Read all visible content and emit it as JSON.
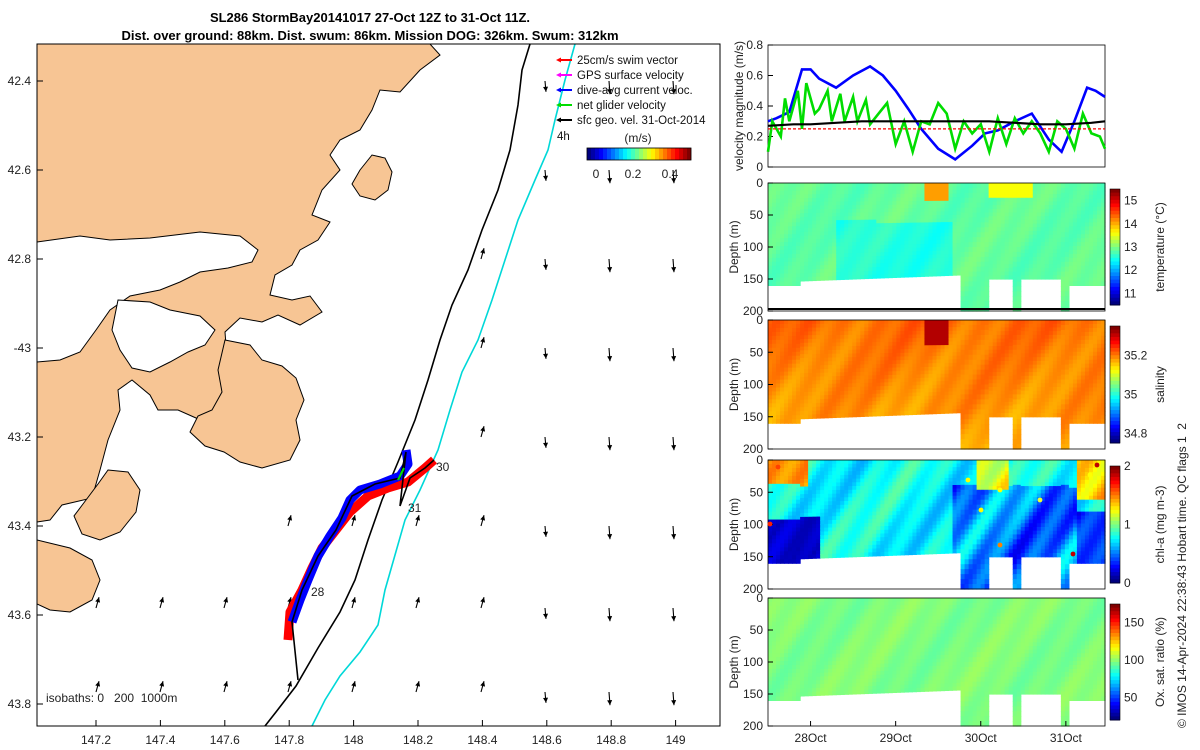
{
  "title": {
    "line1": "SL286 StormBay20141017 27-Oct 12Z to 31-Oct 11Z.",
    "line2": "Dist. over ground: 88km. Dist. swum: 86km. Mission DOG: 326km. Swum: 312km"
  },
  "colors": {
    "land": "#f7c594",
    "swim": "#ff0000",
    "gps": "#ff00ff",
    "dive": "#0000ff",
    "net": "#00dd00",
    "sfc": "#000000",
    "isobath200": "#000000",
    "isobath1000": "#00d8d8"
  },
  "map": {
    "lon_ticks": [
      "147.2",
      "147.4",
      "147.6",
      "147.8",
      "148",
      "148.2",
      "148.4",
      "148.6",
      "148.8",
      "149"
    ],
    "lat_ticks": [
      "42.4",
      "42.6",
      "42.8",
      "-43",
      "43.2",
      "43.4",
      "43.6",
      "43.8"
    ],
    "legend": [
      {
        "key": "swim",
        "label": "25cm/s swim vector"
      },
      {
        "key": "gps",
        "label": "GPS surface velocity"
      },
      {
        "key": "dive",
        "label": "dive-avg current veloc."
      },
      {
        "key": "net",
        "label": "net glider velocity"
      },
      {
        "key": "sfc",
        "label": "sfc geo. vel. 31-Oct-2014"
      }
    ],
    "four_h": "4h",
    "colorbar_title": "(m/s)",
    "colorbar_ticks": [
      "0",
      "0.2",
      "0.4"
    ],
    "day_labels": [
      "28",
      "30",
      "31"
    ],
    "isobaths_label": "isobaths: 0   200  1000m"
  },
  "chart_data": [
    {
      "type": "line",
      "title": "",
      "xlabel": "",
      "ylabel": "velocity magnitude (m/s)",
      "ylim": [
        0,
        0.8
      ],
      "yticks": [
        "0",
        "0.2",
        "0.4",
        "0.6",
        "0.8"
      ],
      "x_day_range": [
        27.5,
        31.46
      ],
      "series": [
        {
          "name": "dive-avg current veloc.",
          "color": "#0000ff",
          "x": [
            27.5,
            27.6,
            27.75,
            27.9,
            28.0,
            28.1,
            28.3,
            28.5,
            28.7,
            28.85,
            29.0,
            29.15,
            29.3,
            29.5,
            29.7,
            29.9,
            30.05,
            30.2,
            30.4,
            30.6,
            30.8,
            30.95,
            31.1,
            31.25,
            31.35,
            31.46
          ],
          "values": [
            0.3,
            0.32,
            0.36,
            0.64,
            0.64,
            0.58,
            0.52,
            0.6,
            0.66,
            0.6,
            0.5,
            0.38,
            0.25,
            0.12,
            0.05,
            0.14,
            0.22,
            0.24,
            0.3,
            0.35,
            0.18,
            0.1,
            0.3,
            0.52,
            0.5,
            0.46
          ]
        },
        {
          "name": "net glider velocity",
          "color": "#00dd00",
          "x": [
            27.5,
            27.55,
            27.65,
            27.7,
            27.75,
            27.85,
            27.9,
            27.95,
            28.05,
            28.1,
            28.2,
            28.25,
            28.35,
            28.4,
            28.5,
            28.55,
            28.65,
            28.7,
            28.8,
            28.9,
            29.0,
            29.1,
            29.2,
            29.3,
            29.4,
            29.5,
            29.6,
            29.7,
            29.8,
            29.9,
            30.0,
            30.1,
            30.2,
            30.3,
            30.4,
            30.5,
            30.6,
            30.7,
            30.8,
            30.9,
            31.0,
            31.1,
            31.2,
            31.3,
            31.4,
            31.46
          ],
          "values": [
            0.1,
            0.3,
            0.2,
            0.45,
            0.3,
            0.5,
            0.25,
            0.55,
            0.35,
            0.38,
            0.5,
            0.3,
            0.48,
            0.3,
            0.46,
            0.3,
            0.44,
            0.28,
            0.35,
            0.42,
            0.15,
            0.3,
            0.1,
            0.3,
            0.28,
            0.42,
            0.35,
            0.12,
            0.3,
            0.22,
            0.28,
            0.1,
            0.32,
            0.15,
            0.32,
            0.22,
            0.3,
            0.22,
            0.1,
            0.3,
            0.25,
            0.12,
            0.35,
            0.22,
            0.2,
            0.12
          ]
        },
        {
          "name": "sfc geo. vel. 31-Oct-2014",
          "color": "#000000",
          "x": [
            27.5,
            27.8,
            28.0,
            28.3,
            28.6,
            28.9,
            29.2,
            29.5,
            29.8,
            30.1,
            30.4,
            30.7,
            31.0,
            31.3,
            31.46
          ],
          "values": [
            0.27,
            0.28,
            0.28,
            0.29,
            0.3,
            0.3,
            0.3,
            0.3,
            0.3,
            0.3,
            0.29,
            0.28,
            0.28,
            0.29,
            0.3
          ]
        },
        {
          "name": "25cm/s swim vector",
          "color": "#ff0000",
          "x": [
            27.5,
            31.46
          ],
          "values": [
            0.25,
            0.25
          ]
        }
      ]
    },
    {
      "type": "heatmap",
      "ylabel": "Depth (m)",
      "cbar_label": "temperature (°C)",
      "ylim": [
        200,
        0
      ],
      "yticks": [
        "0",
        "50",
        "100",
        "150",
        "200"
      ],
      "clim": [
        10.5,
        15.5
      ],
      "cbar_ticks": [
        "11",
        "12",
        "13",
        "14",
        "15"
      ],
      "x_day_range": [
        27.5,
        31.46
      ]
    },
    {
      "type": "heatmap",
      "ylabel": "Depth (m)",
      "cbar_label": "salinity",
      "ylim": [
        200,
        0
      ],
      "yticks": [
        "0",
        "50",
        "100",
        "150",
        "200"
      ],
      "clim": [
        34.75,
        35.35
      ],
      "cbar_ticks": [
        "34.8",
        "35",
        "35.2"
      ],
      "x_day_range": [
        27.5,
        31.46
      ]
    },
    {
      "type": "heatmap",
      "ylabel": "Depth (m)",
      "cbar_label": "chl-a (mg m-3)",
      "ylim": [
        200,
        0
      ],
      "yticks": [
        "0",
        "50",
        "100",
        "150",
        "200"
      ],
      "clim": [
        0,
        2
      ],
      "cbar_ticks": [
        "0",
        "1",
        "2"
      ],
      "x_day_range": [
        27.5,
        31.46
      ]
    },
    {
      "type": "heatmap",
      "ylabel": "Depth (m)",
      "cbar_label": "Ox. sat. ratio (%)",
      "ylim": [
        200,
        0
      ],
      "yticks": [
        "0",
        "50",
        "100",
        "150",
        "200"
      ],
      "clim": [
        20,
        175
      ],
      "cbar_ticks": [
        "50",
        "100",
        "150"
      ],
      "x_day_range": [
        27.5,
        31.46
      ],
      "xticks": [
        "28Oct",
        "29Oct",
        "30Oct",
        "31Oct"
      ]
    }
  ],
  "footer": "© IMOS 14-Apr-2024 22:38:43 Hobart time. QC flags 1  2"
}
